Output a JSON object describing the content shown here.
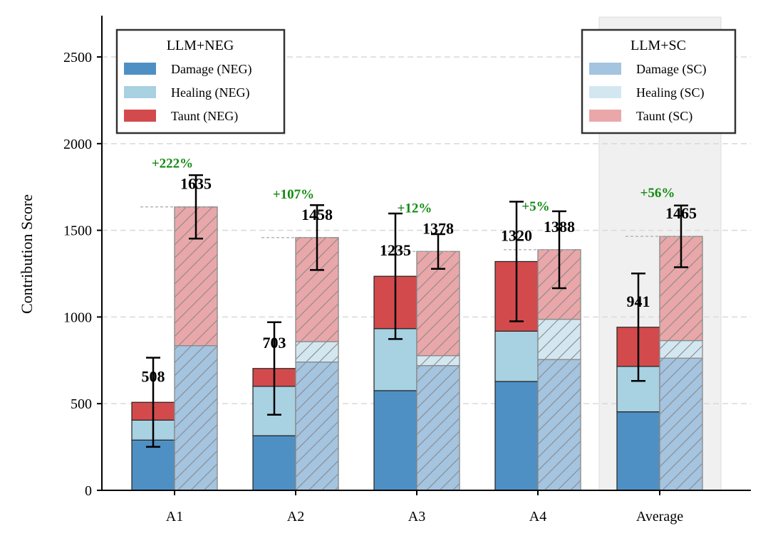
{
  "chart_data": {
    "type": "bar",
    "subtype": "grouped-stacked",
    "ylabel": "Contribution Score",
    "ylim": [
      0,
      2730
    ],
    "yticks": [
      0,
      500,
      1000,
      1500,
      2000,
      2500
    ],
    "grid": "horizontal dashed",
    "categories": [
      "A1",
      "A2",
      "A3",
      "A4",
      "Average"
    ],
    "highlight_category": "Average",
    "groups": [
      {
        "name": "LLM+NEG",
        "legend_placement": "top-left",
        "series": [
          {
            "name": "Damage (NEG)",
            "color": "#4f90c4",
            "values": [
              290,
              315,
              575,
              628,
              453
            ]
          },
          {
            "name": "Healing (NEG)",
            "color": "#a8d1e2",
            "values": [
              115,
              285,
              358,
              290,
              262
            ]
          },
          {
            "name": "Taunt (NEG)",
            "color": "#d34a4c",
            "values": [
              103,
              103,
              302,
              402,
              226
            ]
          }
        ],
        "totals": [
          508,
          703,
          1235,
          1320,
          941
        ],
        "errors": [
          257,
          267,
          362,
          345,
          310
        ]
      },
      {
        "name": "LLM+SC",
        "legend_placement": "top-right",
        "hatched": true,
        "series": [
          {
            "name": "Damage (SC)",
            "color": "#a4c4e0",
            "values": [
              835,
              740,
              720,
              755,
              762
            ]
          },
          {
            "name": "Healing (SC)",
            "color": "#d3e7f0",
            "values": [
              0,
              118,
              57,
              232,
              102
            ]
          },
          {
            "name": "Taunt (SC)",
            "color": "#e9a7a9",
            "values": [
              800,
              600,
              601,
              401,
              601
            ]
          }
        ],
        "totals": [
          1635,
          1458,
          1378,
          1388,
          1465
        ],
        "errors": [
          183,
          187,
          100,
          222,
          178
        ]
      }
    ],
    "annotations": [
      "+222%",
      "+107%",
      "+12%",
      "+5%",
      "+56%"
    ]
  }
}
